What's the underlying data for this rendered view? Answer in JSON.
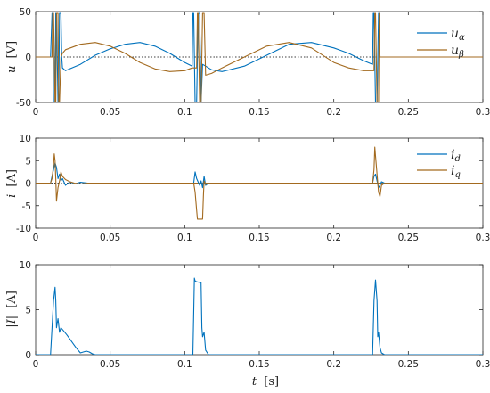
{
  "colors": {
    "blue": "#0072BD",
    "orange": "#A36A1F",
    "axis": "#262626"
  },
  "chart_data": [
    {
      "type": "line",
      "title": "",
      "xlabel": "",
      "ylabel": "u [V]",
      "ylabel_var": "u",
      "ylabel_unit": "[V]",
      "xlim": [
        0,
        0.3
      ],
      "ylim": [
        -50,
        50
      ],
      "xticks": [
        "0",
        "0.05",
        "0.1",
        "0.15",
        "0.2",
        "0.25",
        "0.3"
      ],
      "yticks": [
        "-50",
        "0",
        "50"
      ],
      "zero_line": "dotted",
      "legend": "top-right",
      "series": [
        {
          "name": "u",
          "name_sub": "α",
          "color": "blue",
          "x": [
            0,
            0.01,
            0.011,
            0.0115,
            0.012,
            0.013,
            0.0135,
            0.014,
            0.015,
            0.0155,
            0.016,
            0.017,
            0.0175,
            0.018,
            0.02,
            0.03,
            0.04,
            0.05,
            0.06,
            0.07,
            0.08,
            0.09,
            0.1,
            0.105,
            0.1055,
            0.106,
            0.107,
            0.108,
            0.109,
            0.11,
            0.111,
            0.112,
            0.114,
            0.118,
            0.125,
            0.14,
            0.155,
            0.17,
            0.185,
            0.2,
            0.21,
            0.22,
            0.226,
            0.2265,
            0.227,
            0.228,
            0.229,
            0.23,
            0.2305,
            0.231,
            0.232,
            0.24,
            0.3
          ],
          "y": [
            0,
            0,
            48,
            48,
            -50,
            -50,
            48,
            48,
            -50,
            -50,
            48,
            48,
            0,
            -12,
            -15,
            -8,
            2,
            9,
            14,
            16,
            12,
            4,
            -6,
            -10,
            48,
            48,
            -50,
            -50,
            48,
            48,
            -50,
            -8,
            -10,
            -14,
            -16,
            -10,
            2,
            14,
            16,
            10,
            4,
            -4,
            -8,
            48,
            48,
            -50,
            -50,
            48,
            48,
            0,
            0,
            0,
            0
          ]
        },
        {
          "name": "u",
          "name_sub": "β",
          "color": "orange",
          "x": [
            0,
            0.011,
            0.0115,
            0.012,
            0.013,
            0.0135,
            0.014,
            0.015,
            0.0155,
            0.016,
            0.017,
            0.018,
            0.02,
            0.03,
            0.04,
            0.05,
            0.06,
            0.07,
            0.08,
            0.09,
            0.1,
            0.105,
            0.108,
            0.1085,
            0.109,
            0.11,
            0.111,
            0.112,
            0.113,
            0.114,
            0.118,
            0.125,
            0.14,
            0.155,
            0.17,
            0.185,
            0.2,
            0.21,
            0.22,
            0.227,
            0.2275,
            0.228,
            0.229,
            0.23,
            0.2305,
            0.231,
            0.232,
            0.24,
            0.3
          ],
          "y": [
            0,
            0,
            48,
            48,
            -50,
            -50,
            48,
            48,
            -50,
            -50,
            0,
            4,
            8,
            14,
            16,
            12,
            4,
            -6,
            -13,
            -16,
            -15,
            -12,
            -12,
            48,
            48,
            -50,
            -50,
            48,
            48,
            -20,
            -18,
            -12,
            0,
            12,
            16,
            10,
            -6,
            -12,
            -15,
            -15,
            48,
            48,
            -50,
            -50,
            48,
            0,
            0,
            0,
            0
          ]
        }
      ]
    },
    {
      "type": "line",
      "title": "",
      "xlabel": "",
      "ylabel": "i [A]",
      "ylabel_var": "i",
      "ylabel_unit": "[A]",
      "xlim": [
        0,
        0.3
      ],
      "ylim": [
        -10,
        10
      ],
      "xticks": [
        "0",
        "0.05",
        "0.1",
        "0.15",
        "0.2",
        "0.25",
        "0.3"
      ],
      "yticks": [
        "-10",
        "-5",
        "0",
        "5",
        "10"
      ],
      "zero_line": "dotted",
      "legend": "top-right",
      "series": [
        {
          "name": "i",
          "name_sub": "d",
          "color": "blue",
          "x": [
            0,
            0.01,
            0.012,
            0.013,
            0.014,
            0.015,
            0.016,
            0.017,
            0.018,
            0.02,
            0.023,
            0.026,
            0.03,
            0.035,
            0.04,
            0.045,
            0.3
          ],
          "y": [
            0,
            0,
            3,
            4.5,
            3.5,
            1,
            2,
            0.5,
            1,
            -0.5,
            0.3,
            -0.2,
            0.2,
            0,
            0,
            0,
            0
          ]
        },
        {
          "name": "i",
          "name_sub": "q",
          "color": "orange",
          "x": [
            0,
            0.01,
            0.011,
            0.012,
            0.0125,
            0.013,
            0.0135,
            0.014,
            0.015,
            0.016,
            0.017,
            0.018,
            0.02,
            0.023,
            0.026,
            0.03,
            0.035,
            0.04,
            0.3
          ],
          "y": [
            0,
            0,
            1,
            4,
            6.5,
            5,
            1,
            -4,
            -1,
            0.5,
            2.5,
            1.5,
            0.8,
            0.3,
            0,
            -0.2,
            0,
            0,
            0
          ]
        },
        {
          "name": "",
          "color": "blue",
          "x": [
            0.104,
            0.106,
            0.107,
            0.108,
            0.11,
            0.111,
            0.112,
            0.113,
            0.114,
            0.116
          ],
          "y": [
            0,
            0,
            2.5,
            1,
            -0.5,
            0.5,
            -1,
            1.5,
            -0.5,
            0
          ]
        },
        {
          "name": "",
          "color": "orange",
          "x": [
            0.104,
            0.106,
            0.107,
            0.108,
            0.1085,
            0.112,
            0.1125,
            0.113,
            0.114,
            0.116
          ],
          "y": [
            0,
            0,
            -2,
            -6,
            -8,
            -8,
            -3,
            0.5,
            -0.3,
            0
          ]
        },
        {
          "name": "",
          "color": "blue",
          "x": [
            0.224,
            0.226,
            0.227,
            0.228,
            0.229,
            0.23,
            0.231,
            0.232,
            0.234
          ],
          "y": [
            0,
            0,
            1.5,
            2,
            0.5,
            -1,
            -0.5,
            0.3,
            0
          ]
        },
        {
          "name": "",
          "color": "orange",
          "x": [
            0.224,
            0.226,
            0.227,
            0.2275,
            0.228,
            0.229,
            0.23,
            0.231,
            0.232,
            0.234
          ],
          "y": [
            0,
            0,
            3,
            8,
            6,
            2,
            -2,
            -3,
            -0.5,
            0
          ]
        }
      ]
    },
    {
      "type": "line",
      "title": "",
      "xlabel": "t [s]",
      "xlabel_var": "t",
      "xlabel_unit": "[s]",
      "ylabel": "|I| [A]",
      "ylabel_var": "|I|",
      "ylabel_unit": "[A]",
      "xlim": [
        0,
        0.3
      ],
      "ylim": [
        0,
        10
      ],
      "xticks": [
        "0",
        "0.05",
        "0.1",
        "0.15",
        "0.2",
        "0.25",
        "0.3"
      ],
      "yticks": [
        "0",
        "5",
        "10"
      ],
      "series": [
        {
          "name": "",
          "color": "blue",
          "x": [
            0,
            0.01,
            0.011,
            0.012,
            0.013,
            0.0135,
            0.014,
            0.015,
            0.016,
            0.017,
            0.018,
            0.019,
            0.021,
            0.024,
            0.027,
            0.03,
            0.032,
            0.034,
            0.036,
            0.038,
            0.04,
            0.045,
            0.1055,
            0.1065,
            0.107,
            0.108,
            0.111,
            0.1115,
            0.112,
            0.113,
            0.114,
            0.116,
            0.226,
            0.227,
            0.228,
            0.229,
            0.2295,
            0.23,
            0.231,
            0.232,
            0.234,
            0.3
          ],
          "y": [
            0,
            0,
            3,
            6,
            7.5,
            6,
            3,
            4,
            2.5,
            3,
            2.8,
            2.6,
            2.2,
            1.5,
            0.8,
            0.2,
            0.3,
            0.4,
            0.3,
            0.1,
            0,
            0,
            0,
            8.5,
            8.2,
            8.1,
            8.0,
            3,
            2,
            2.5,
            0.5,
            0,
            0,
            6,
            8.3,
            6,
            2,
            2.5,
            0.8,
            0.2,
            0,
            0
          ]
        }
      ]
    }
  ]
}
